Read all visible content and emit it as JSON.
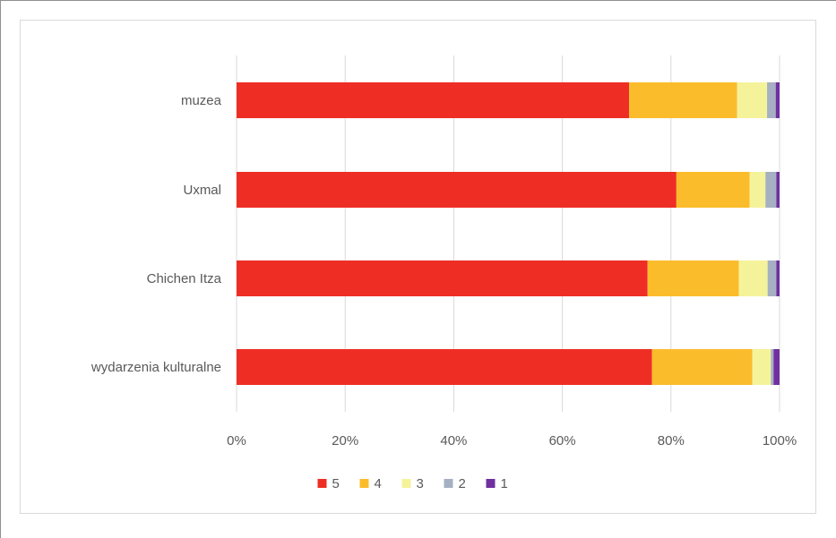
{
  "chart_data": {
    "type": "bar",
    "orientation": "horizontal",
    "stacked": "percent",
    "title": "",
    "xlabel": "",
    "ylabel": "",
    "categories": [
      "muzea",
      "Uxmal",
      "Chichen Itza",
      "wydarzenia kulturalne"
    ],
    "xlim": [
      0,
      100
    ],
    "x_ticks": [
      "0%",
      "20%",
      "40%",
      "60%",
      "80%",
      "100%"
    ],
    "grid": "vertical",
    "legend_position": "bottom",
    "series": [
      {
        "name": "5",
        "color": "#ee2e24",
        "values": [
          72.3,
          81.0,
          75.7,
          76.5
        ]
      },
      {
        "name": "4",
        "color": "#fbbc2c",
        "values": [
          19.9,
          13.5,
          16.8,
          18.5
        ]
      },
      {
        "name": "3",
        "color": "#f5f39a",
        "values": [
          5.5,
          2.9,
          5.3,
          3.4
        ]
      },
      {
        "name": "2",
        "color": "#a5b0c2",
        "values": [
          1.6,
          2.0,
          1.6,
          0.5
        ]
      },
      {
        "name": "1",
        "color": "#7030a0",
        "values": [
          0.7,
          0.6,
          0.6,
          1.1
        ]
      }
    ]
  }
}
